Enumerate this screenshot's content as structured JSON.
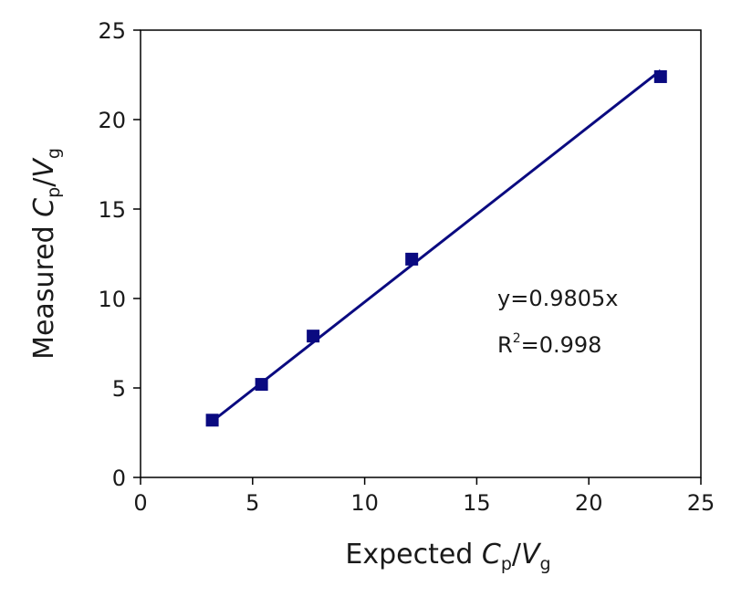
{
  "chart_data": {
    "type": "scatter",
    "xlabel": {
      "prefix": "Expected ",
      "var1": "C",
      "sub1": "p",
      "slash": "/",
      "var2": "V",
      "sub2": "g"
    },
    "ylabel": {
      "prefix": "Measured ",
      "var1": "C",
      "sub1": "p",
      "slash": "/",
      "var2": "V",
      "sub2": "g"
    },
    "xlim": [
      0,
      25
    ],
    "ylim": [
      0,
      25
    ],
    "xticks": [
      0,
      5,
      10,
      15,
      20,
      25
    ],
    "yticks": [
      0,
      5,
      10,
      15,
      20,
      25
    ],
    "xtick_labels": [
      "0",
      "5",
      "10",
      "15",
      "20",
      "25"
    ],
    "ytick_labels": [
      "0",
      "5",
      "10",
      "15",
      "20",
      "25"
    ],
    "grid": false,
    "points": [
      {
        "x": 3.2,
        "y": 3.2
      },
      {
        "x": 5.4,
        "y": 5.2
      },
      {
        "x": 7.7,
        "y": 7.9
      },
      {
        "x": 12.1,
        "y": 12.2
      },
      {
        "x": 23.2,
        "y": 22.4
      }
    ],
    "fit": {
      "type": "linear",
      "slope": 0.9805,
      "x_range": [
        3.2,
        23.2
      ]
    },
    "annotation": {
      "equation": "y=0.9805x",
      "r2_prefix": "R",
      "r2_sup": "2",
      "r2_value": "=0.998"
    },
    "colors": {
      "series": "#0a0a80",
      "axis": "#000000"
    }
  }
}
